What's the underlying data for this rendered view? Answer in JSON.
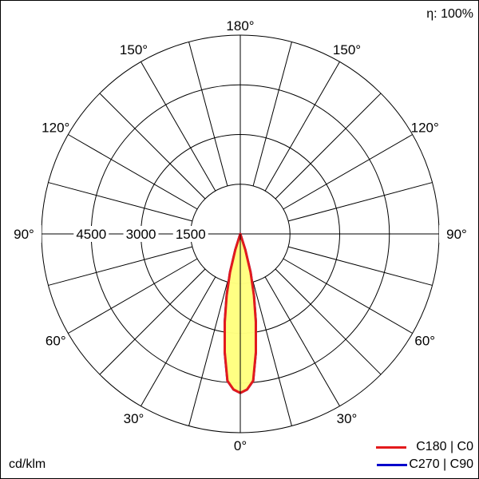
{
  "chart_data": {
    "type": "polar",
    "unit_label": "cd/klm",
    "efficiency_label": "η: 100%",
    "radial_ticks": [
      1500,
      3000,
      4500,
      6000
    ],
    "radial_tick_labels": [
      "1500",
      "3000",
      "4500"
    ],
    "rmax": 6000,
    "angle_labels": [
      {
        "text": "0°",
        "angle": 0,
        "side": "center"
      },
      {
        "text": "30°",
        "angle": 30,
        "side": "left"
      },
      {
        "text": "30°",
        "angle": 30,
        "side": "right"
      },
      {
        "text": "60°",
        "angle": 60,
        "side": "left"
      },
      {
        "text": "60°",
        "angle": 60,
        "side": "right"
      },
      {
        "text": "90°",
        "angle": 90,
        "side": "left"
      },
      {
        "text": "90°",
        "angle": 90,
        "side": "right"
      },
      {
        "text": "120°",
        "angle": 120,
        "side": "left"
      },
      {
        "text": "120°",
        "angle": 120,
        "side": "right"
      },
      {
        "text": "150°",
        "angle": 150,
        "side": "left"
      },
      {
        "text": "150°",
        "angle": 150,
        "side": "right"
      },
      {
        "text": "180°",
        "angle": 180,
        "side": "center"
      }
    ],
    "grid_angle_step": 15,
    "series": [
      {
        "name": "C180 | C0",
        "color": "#e31a1c",
        "fill": "#ffff80",
        "angles": [
          0,
          2.5,
          5,
          7.5,
          10,
          12.5,
          15,
          17.5,
          20
        ],
        "values": [
          4800,
          4700,
          4450,
          3600,
          2700,
          1900,
          1200,
          500,
          0
        ]
      },
      {
        "name": "C270 | C90",
        "color": "#0000cc",
        "fill": "#ffff80",
        "angles": [
          0,
          2.5,
          5,
          7.5,
          10,
          12.5,
          15,
          17.5,
          20
        ],
        "values": [
          4800,
          4700,
          4450,
          3600,
          2700,
          1900,
          1200,
          500,
          0
        ]
      }
    ]
  }
}
